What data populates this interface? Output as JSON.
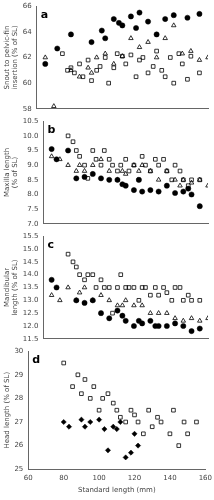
{
  "chart_data": [
    {
      "type": "scatter",
      "annotations": [
        "a"
      ],
      "ylabel": "Snout to pelvic-fin insertion (% of SL)",
      "xlim": [
        60,
        160
      ],
      "xticks": [
        60,
        80,
        100,
        120,
        140,
        160
      ],
      "ylim": [
        58.0,
        66.0
      ],
      "yticks": [
        58,
        60,
        62,
        64,
        66
      ],
      "grid": false,
      "tick_labels": "y",
      "series": [
        {
          "color": "black",
          "marker": "circle",
          "x": [
            65,
            72,
            80,
            92,
            98,
            100,
            105,
            108,
            110,
            115,
            118,
            120,
            125,
            130,
            135,
            140,
            148,
            155
          ],
          "values": [
            61.5,
            62.7,
            63.8,
            63.2,
            64.1,
            63.5,
            65.0,
            64.7,
            64.5,
            65.2,
            64.3,
            65.5,
            64.8,
            63.8,
            65.0,
            65.3,
            65.1,
            65.4
          ]
        },
        {
          "color": "black",
          "marker": "open_square",
          "x": [
            75,
            78,
            80,
            82,
            85,
            87,
            90,
            92,
            95,
            97,
            100,
            102,
            105,
            107,
            110,
            112,
            115,
            118,
            120,
            122,
            125,
            128,
            130,
            133,
            135,
            138,
            140,
            143,
            145,
            148,
            150,
            155
          ],
          "values": [
            62.3,
            61.0,
            61.2,
            60.8,
            61.5,
            60.5,
            61.8,
            60.2,
            61.0,
            61.3,
            62.0,
            60.0,
            61.2,
            62.3,
            62.1,
            61.5,
            62.2,
            60.5,
            61.8,
            62.0,
            60.8,
            61.3,
            62.5,
            61.0,
            60.5,
            62.0,
            60.0,
            62.3,
            61.5,
            60.3,
            62.1,
            60.8
          ]
        },
        {
          "color": "black",
          "marker": "open_triangle",
          "x": [
            65,
            70,
            80,
            85,
            90,
            92,
            95,
            100,
            105,
            110,
            115,
            120,
            125,
            130,
            135,
            140,
            145,
            150,
            155,
            160
          ],
          "values": [
            62.0,
            58.2,
            61.0,
            60.5,
            61.2,
            60.8,
            62.0,
            62.3,
            61.5,
            62.1,
            63.5,
            62.8,
            63.2,
            62.0,
            63.5,
            64.5,
            62.3,
            62.5,
            61.8,
            62.0
          ]
        }
      ]
    },
    {
      "type": "scatter",
      "annotations": [
        "b"
      ],
      "ylabel": "Maxilla length (% of SL)",
      "xlim": [
        60,
        160
      ],
      "xticks": [
        60,
        80,
        100,
        120,
        140,
        160
      ],
      "ylim": [
        7.0,
        10.5
      ],
      "yticks": [
        {
          "value": 7,
          "label": "7.0"
        },
        7.5,
        {
          "value": 8,
          "label": "8.0"
        },
        8.5,
        {
          "value": 9,
          "label": "9.0"
        },
        9.5,
        {
          "value": 10,
          "label": "10.0"
        },
        10.5
      ],
      "grid": false,
      "tick_labels": "y",
      "series": [
        {
          "color": "black",
          "marker": "circle",
          "x": [
            65,
            68,
            75,
            80,
            85,
            90,
            95,
            100,
            105,
            108,
            110,
            115,
            118,
            120,
            125,
            130,
            135,
            140,
            145,
            148,
            150,
            155
          ],
          "values": [
            9.55,
            9.2,
            9.5,
            8.55,
            8.6,
            8.7,
            8.55,
            8.5,
            8.5,
            8.35,
            8.3,
            8.15,
            8.5,
            8.1,
            8.15,
            8.1,
            8.3,
            8.05,
            8.1,
            8.2,
            8.0,
            7.6
          ]
        },
        {
          "color": "black",
          "marker": "open_square",
          "x": [
            75,
            78,
            80,
            82,
            85,
            87,
            90,
            92,
            95,
            97,
            100,
            102,
            105,
            107,
            110,
            112,
            115,
            118,
            120,
            122,
            125,
            128,
            130,
            133,
            135,
            138,
            140,
            143,
            145,
            148,
            150,
            155
          ],
          "values": [
            10.0,
            9.8,
            9.5,
            9.3,
            9.0,
            8.55,
            9.5,
            9.2,
            9.0,
            9.5,
            9.2,
            9.0,
            8.8,
            9.0,
            9.2,
            8.8,
            9.0,
            8.5,
            9.3,
            9.0,
            8.8,
            9.2,
            9.0,
            9.2,
            8.8,
            8.5,
            9.0,
            8.8,
            8.5,
            8.3,
            8.5,
            8.5
          ]
        },
        {
          "color": "black",
          "marker": "open_triangle",
          "x": [
            65,
            70,
            75,
            80,
            82,
            85,
            90,
            95,
            100,
            105,
            108,
            110,
            115,
            118,
            120,
            125,
            130,
            135,
            140,
            143,
            145,
            150,
            155,
            160
          ],
          "values": [
            9.3,
            9.2,
            9.0,
            8.8,
            9.0,
            8.8,
            9.0,
            9.2,
            8.8,
            8.5,
            8.8,
            8.7,
            9.0,
            8.8,
            9.0,
            8.8,
            8.5,
            8.8,
            8.5,
            8.3,
            8.5,
            8.4,
            8.5,
            8.3
          ]
        }
      ]
    },
    {
      "type": "scatter",
      "annotations": [
        "c"
      ],
      "ylabel": "Mandibular length (% of SL)",
      "xlim": [
        60,
        160
      ],
      "xticks": [
        60,
        80,
        100,
        120,
        140,
        160
      ],
      "ylim": [
        11.5,
        15.5
      ],
      "yticks": [
        11.5,
        {
          "value": 12,
          "label": "12.0"
        },
        12.5,
        {
          "value": 13,
          "label": "13.0"
        },
        13.5,
        {
          "value": 14,
          "label": "14.0"
        },
        14.5,
        {
          "value": 15,
          "label": "15.0"
        },
        15.5
      ],
      "grid": false,
      "tick_labels": "y",
      "series": [
        {
          "color": "black",
          "marker": "circle",
          "x": [
            65,
            68,
            80,
            85,
            90,
            95,
            100,
            105,
            108,
            110,
            115,
            118,
            120,
            125,
            128,
            130,
            135,
            140,
            145,
            150,
            155
          ],
          "values": [
            13.8,
            13.5,
            13.0,
            12.9,
            13.0,
            12.5,
            12.3,
            12.6,
            12.4,
            12.2,
            12.0,
            12.2,
            12.1,
            12.2,
            12.0,
            12.0,
            12.0,
            12.1,
            12.0,
            11.8,
            11.9
          ]
        },
        {
          "color": "black",
          "marker": "open_square",
          "x": [
            75,
            78,
            80,
            82,
            85,
            87,
            90,
            92,
            95,
            97,
            100,
            102,
            105,
            107,
            110,
            112,
            115,
            118,
            120,
            122,
            125,
            128,
            130,
            133,
            135,
            138,
            140,
            143,
            145,
            148,
            150,
            155
          ],
          "values": [
            14.8,
            14.5,
            14.3,
            14.0,
            13.8,
            14.0,
            14.0,
            13.5,
            13.8,
            13.5,
            13.5,
            12.5,
            13.5,
            14.0,
            13.5,
            13.5,
            13.5,
            13.0,
            13.5,
            13.5,
            13.2,
            13.5,
            13.2,
            13.5,
            13.3,
            13.0,
            13.5,
            13.5,
            13.0,
            13.2,
            13.0,
            13.0
          ]
        },
        {
          "color": "black",
          "marker": "open_triangle",
          "x": [
            65,
            70,
            75,
            80,
            82,
            85,
            90,
            95,
            100,
            105,
            108,
            110,
            115,
            120,
            125,
            130,
            135,
            140,
            145,
            150,
            155,
            160
          ],
          "values": [
            13.2,
            13.0,
            13.5,
            13.0,
            13.3,
            13.5,
            13.0,
            13.2,
            13.0,
            12.8,
            12.8,
            13.0,
            12.8,
            12.8,
            12.5,
            12.5,
            12.5,
            12.3,
            12.2,
            12.3,
            12.2,
            12.3
          ]
        }
      ]
    },
    {
      "type": "scatter",
      "annotations": [
        "d"
      ],
      "ylabel": "Head length (% of SL)",
      "xlabel": "Standard length (mm)",
      "xlim": [
        60,
        160
      ],
      "xticks": [
        60,
        80,
        100,
        120,
        140,
        160
      ],
      "ylim": [
        25.0,
        30.0
      ],
      "yticks": [
        25,
        26,
        27,
        28,
        29,
        30
      ],
      "grid": false,
      "series": [
        {
          "color": "black",
          "marker": "open_square",
          "x": [
            80,
            85,
            88,
            90,
            92,
            95,
            97,
            100,
            102,
            105,
            108,
            110,
            112,
            115,
            118,
            120,
            122,
            125,
            128,
            130,
            133,
            135,
            140,
            142,
            145,
            148,
            150,
            155
          ],
          "values": [
            29.5,
            28.5,
            29.0,
            28.2,
            28.8,
            28.0,
            28.5,
            27.5,
            28.0,
            28.2,
            27.8,
            27.5,
            27.2,
            27.0,
            27.5,
            27.3,
            27.0,
            26.5,
            27.5,
            26.8,
            27.2,
            27.0,
            26.5,
            27.5,
            26.0,
            27.0,
            26.5,
            27.0
          ]
        },
        {
          "color": "black",
          "marker": "diamond",
          "x": [
            80,
            83,
            90,
            92,
            95,
            100,
            103,
            105,
            108,
            110,
            112,
            115,
            118,
            120,
            122
          ],
          "values": [
            27.0,
            26.8,
            27.1,
            26.8,
            27.0,
            27.1,
            26.7,
            25.8,
            26.8,
            26.7,
            27.0,
            25.5,
            25.7,
            26.5,
            26.0
          ]
        }
      ]
    }
  ]
}
